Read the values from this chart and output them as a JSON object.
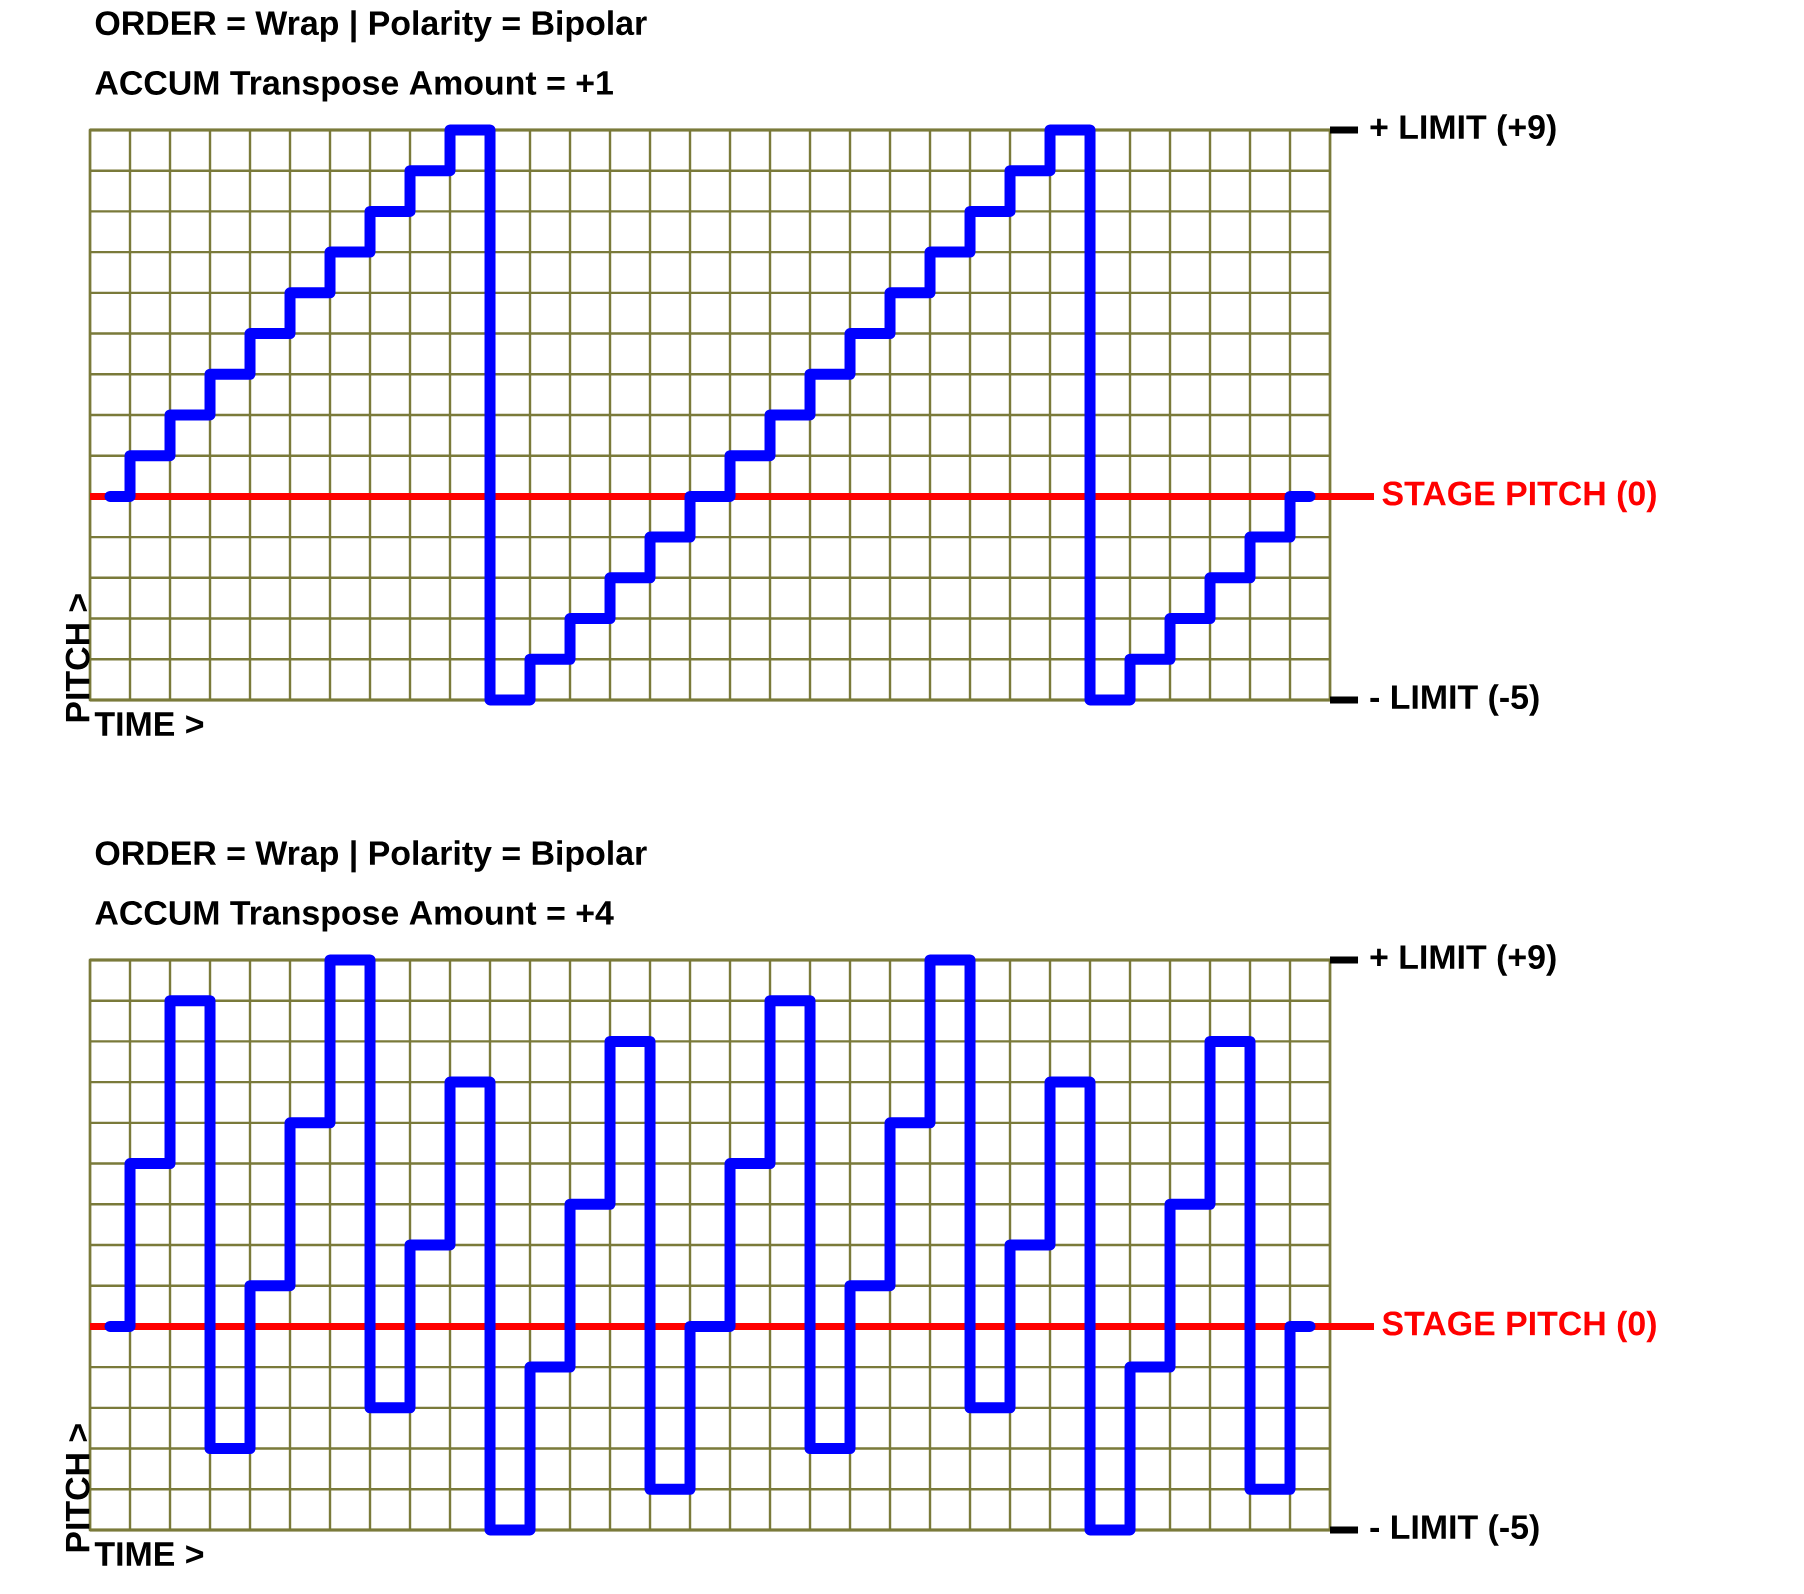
{
  "chart_data": [
    {
      "type": "step",
      "title": "ORDER = Wrap | Polarity = Bipolar",
      "subtitle": "ACCUM Transpose Amount = +1",
      "xlabel": "TIME >",
      "ylabel": "PITCH >",
      "categories": [
        null,
        null,
        null,
        null,
        null,
        null,
        null,
        null,
        null,
        null,
        null,
        null,
        null,
        null,
        null,
        null,
        null,
        null,
        null,
        null,
        null,
        null,
        null,
        null,
        null,
        null,
        null,
        null,
        null,
        null,
        null
      ],
      "series": [
        {
          "color": "#0000ff",
          "values": [
            0,
            1,
            2,
            3,
            4,
            5,
            6,
            7,
            8,
            9,
            -5,
            -4,
            -3,
            -2,
            -1,
            0,
            1,
            2,
            3,
            4,
            5,
            6,
            7,
            8,
            9,
            -5,
            -4,
            -3,
            -2,
            -1,
            0
          ]
        }
      ],
      "ylim": [
        -5,
        9
      ],
      "yticks": [
        {
          "value": -5,
          "label": "- LIMIT (-5)"
        },
        {
          "value": -4,
          "label": null
        },
        {
          "value": -3,
          "label": null
        },
        {
          "value": -2,
          "label": null
        },
        {
          "value": -1,
          "label": null
        },
        {
          "value": 0,
          "label": null
        },
        {
          "value": 1,
          "label": null
        },
        {
          "value": 2,
          "label": null
        },
        {
          "value": 3,
          "label": null
        },
        {
          "value": 4,
          "label": null
        },
        {
          "value": 5,
          "label": null
        },
        {
          "value": 6,
          "label": null
        },
        {
          "value": 7,
          "label": null
        },
        {
          "value": 8,
          "label": null
        },
        {
          "value": 9,
          "label": "+ LIMIT (+9)"
        }
      ],
      "ref_lines": [
        {
          "axis": "y",
          "value": 0,
          "label": "STAGE PITCH (0)",
          "color": "#ff0000"
        }
      ],
      "grid": true,
      "tick_labels": "y"
    },
    {
      "type": "step",
      "title": "ORDER = Wrap | Polarity = Bipolar",
      "subtitle": "ACCUM Transpose Amount = +4",
      "xlabel": "TIME >",
      "ylabel": "PITCH >",
      "categories": [
        null,
        null,
        null,
        null,
        null,
        null,
        null,
        null,
        null,
        null,
        null,
        null,
        null,
        null,
        null,
        null,
        null,
        null,
        null,
        null,
        null,
        null,
        null,
        null,
        null,
        null,
        null,
        null,
        null,
        null,
        null
      ],
      "series": [
        {
          "color": "#0000ff",
          "values": [
            0,
            4,
            8,
            -3,
            1,
            5,
            9,
            -2,
            2,
            6,
            -5,
            -1,
            3,
            7,
            -4,
            0,
            4,
            8,
            -3,
            1,
            5,
            9,
            -2,
            2,
            6,
            -5,
            -1,
            3,
            7,
            -4,
            0
          ]
        }
      ],
      "ylim": [
        -5,
        9
      ],
      "yticks": [
        {
          "value": -5,
          "label": "- LIMIT (-5)"
        },
        {
          "value": -4,
          "label": null
        },
        {
          "value": -3,
          "label": null
        },
        {
          "value": -2,
          "label": null
        },
        {
          "value": -1,
          "label": null
        },
        {
          "value": 0,
          "label": null
        },
        {
          "value": 1,
          "label": null
        },
        {
          "value": 2,
          "label": null
        },
        {
          "value": 3,
          "label": null
        },
        {
          "value": 4,
          "label": null
        },
        {
          "value": 5,
          "label": null
        },
        {
          "value": 6,
          "label": null
        },
        {
          "value": 7,
          "label": null
        },
        {
          "value": 8,
          "label": null
        },
        {
          "value": 9,
          "label": "+ LIMIT (+9)"
        }
      ],
      "ref_lines": [
        {
          "axis": "y",
          "value": 0,
          "label": "STAGE PITCH (0)",
          "color": "#ff0000"
        }
      ],
      "grid": true,
      "tick_labels": "y"
    }
  ]
}
